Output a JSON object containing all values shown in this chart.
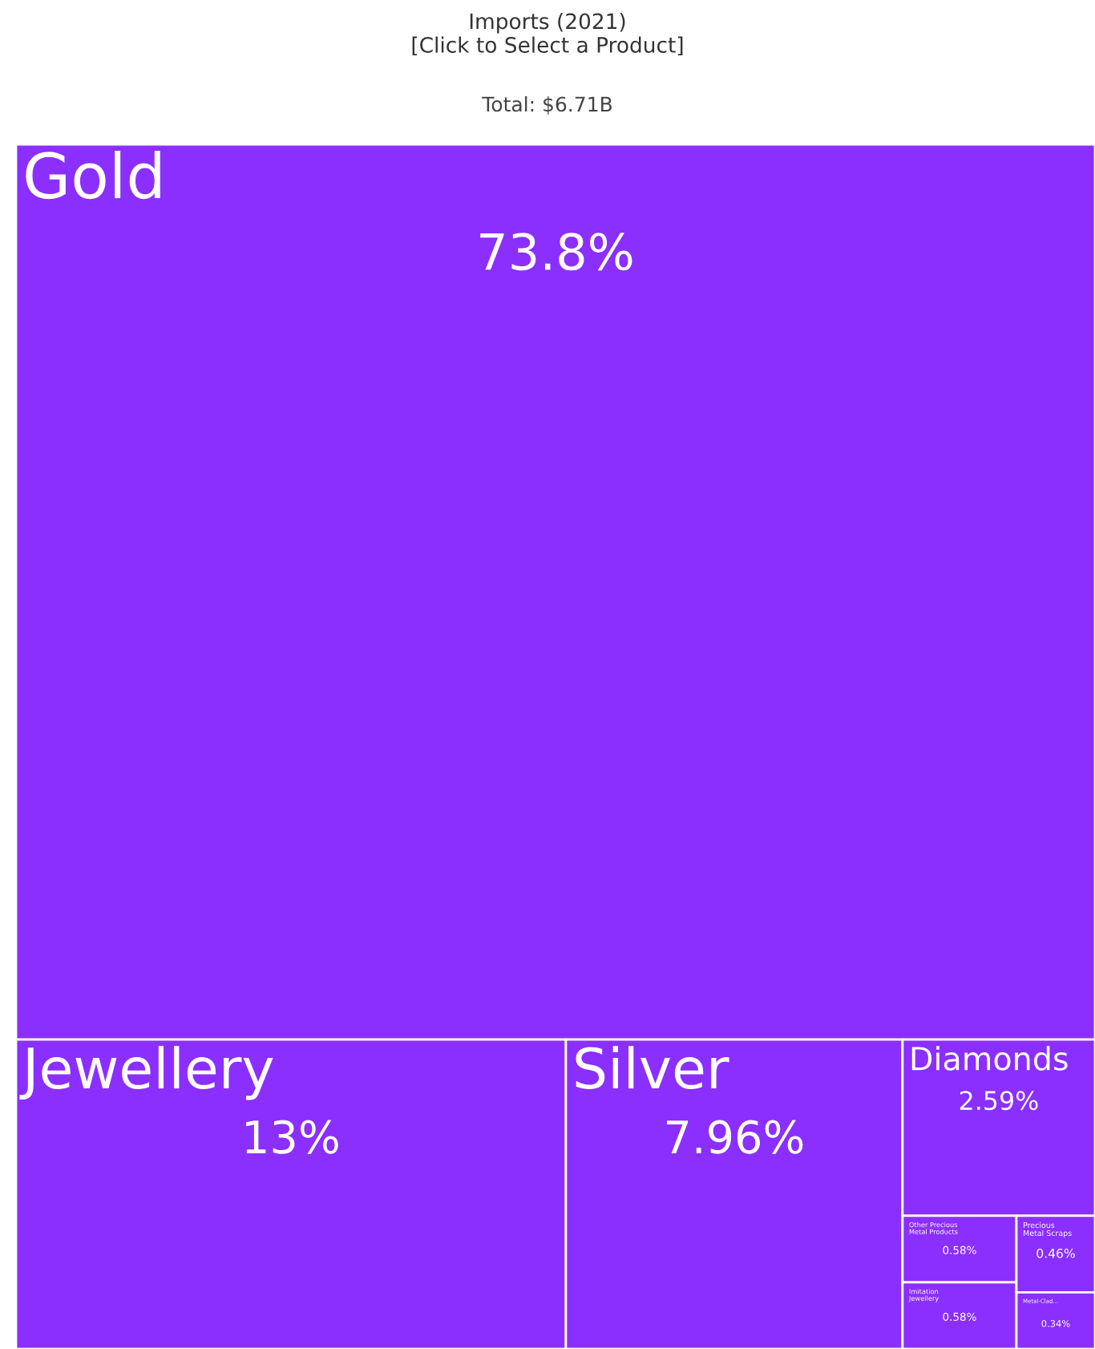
{
  "chart_data": {
    "type": "other",
    "title": "Imports (2021)\n[Click to Select a Product]",
    "subtitle": "Total: $6.71B",
    "categories": [
      "Gold",
      "Jewellery",
      "Silver",
      "Diamonds",
      "Other Precious\nMetal Products",
      "Imitation\nJewellery",
      "Precious\nMetal Scraps",
      "Metal-Clad..."
    ],
    "values": [
      73.8,
      13,
      7.96,
      2.59,
      0.58,
      0.58,
      0.46,
      0.34
    ],
    "value_labels": [
      "73.8%",
      "13%",
      "7.96%",
      "2.59%",
      "0.58%",
      "0.58%",
      "0.46%",
      "0.34%"
    ],
    "color": "#8b2fff"
  }
}
